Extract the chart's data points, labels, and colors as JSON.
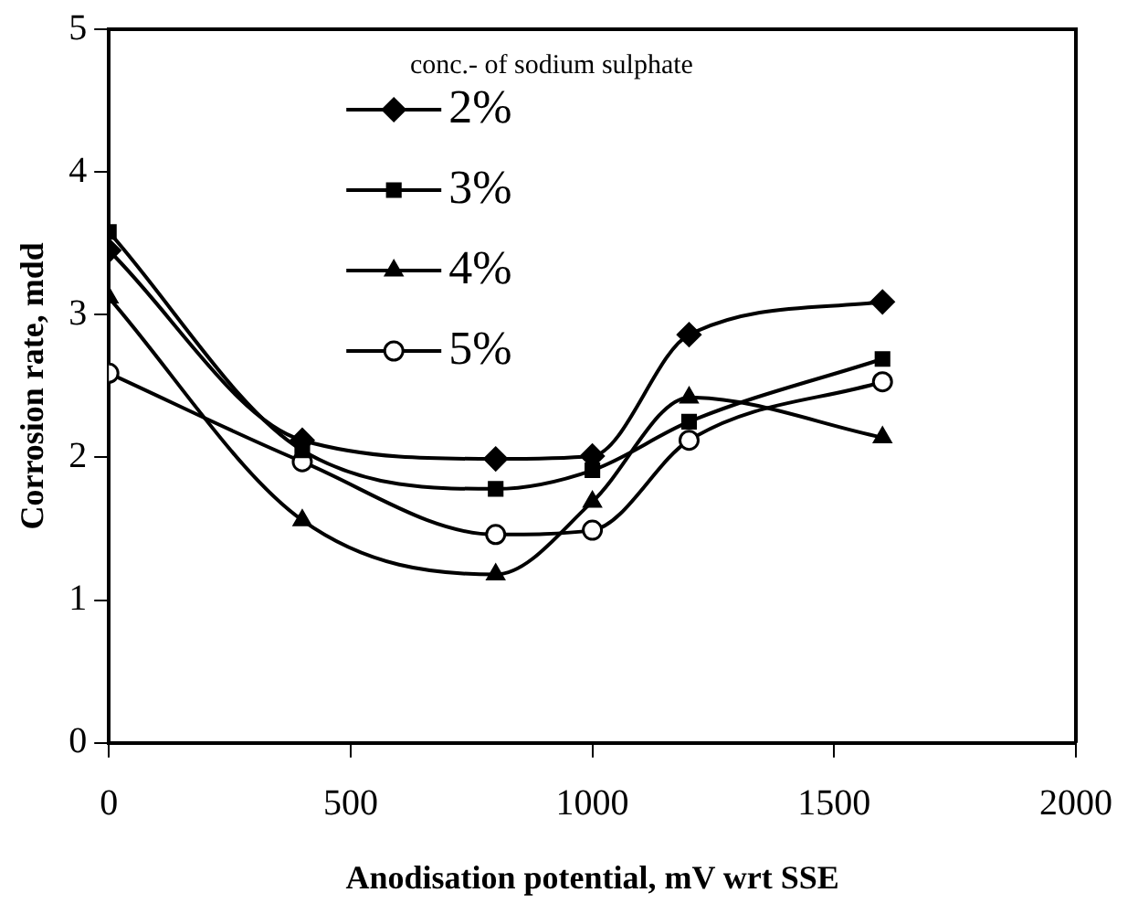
{
  "chart_data": {
    "type": "line",
    "xlabel": "Anodisation potential, mV wrt SSE",
    "ylabel": "Corrosion rate, mdd",
    "legend_title": "conc.- of sodium sulphate",
    "legend": "top",
    "grid": false,
    "x": [
      0,
      400,
      800,
      1000,
      1200,
      1600
    ],
    "xlim": [
      0,
      2000
    ],
    "xticks": [
      0,
      500,
      1000,
      1500,
      2000
    ],
    "ylim": [
      0,
      5
    ],
    "yticks": [
      0,
      1,
      2,
      3,
      4,
      5
    ],
    "series": [
      {
        "name": "2%",
        "color": "#000000",
        "marker": "diamond",
        "values": [
          3.45,
          2.12,
          1.99,
          2.01,
          2.86,
          3.09
        ]
      },
      {
        "name": "3%",
        "color": "#000000",
        "marker": "square",
        "values": [
          3.58,
          2.05,
          1.78,
          1.91,
          2.25,
          2.69
        ]
      },
      {
        "name": "4%",
        "color": "#000000",
        "marker": "triangle",
        "values": [
          3.12,
          1.56,
          1.18,
          1.69,
          2.42,
          2.14
        ]
      },
      {
        "name": "5%",
        "color": "#000000",
        "marker": "circle",
        "values": [
          2.59,
          1.97,
          1.46,
          1.49,
          2.12,
          2.53
        ]
      }
    ]
  }
}
